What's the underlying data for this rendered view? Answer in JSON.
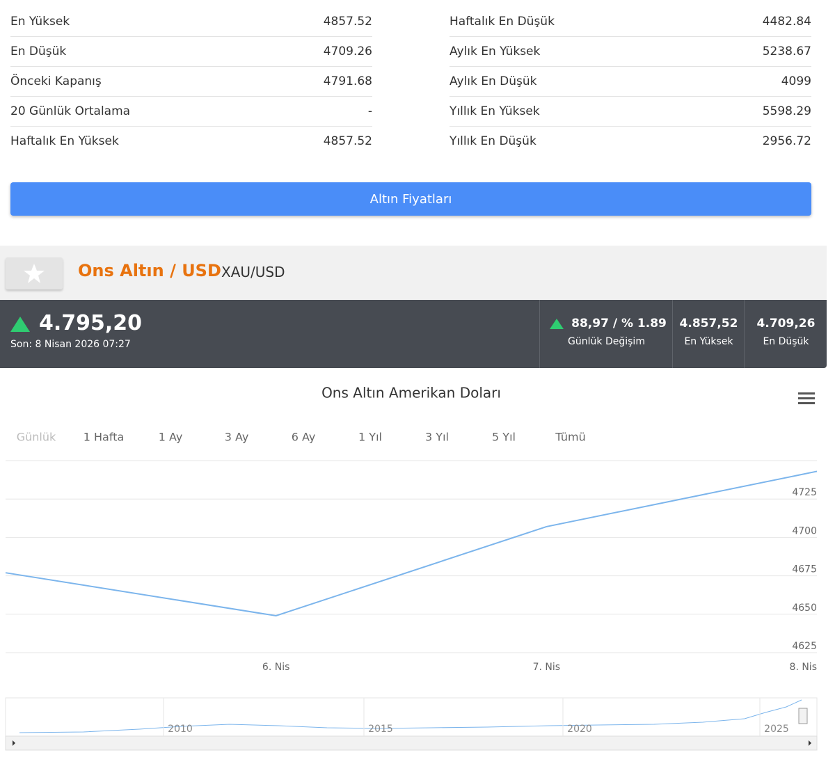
{
  "stats": {
    "left": [
      {
        "label": "En Yüksek",
        "value": 4857.52
      },
      {
        "label": "En Düşük",
        "value": 4709.26
      },
      {
        "label": "Önceki Kapanış",
        "value": 4791.68
      },
      {
        "label": "20 Günlük Ortalama",
        "value": "-"
      },
      {
        "label": "Haftalık En Yüksek",
        "value": 4857.52
      }
    ],
    "right": [
      {
        "label": "Haftalık En Düşük",
        "value": 4482.84
      },
      {
        "label": "Aylık En Yüksek",
        "value": 5238.67
      },
      {
        "label": "Aylık En Düşük",
        "value": 4099
      },
      {
        "label": "Yıllık En Yüksek",
        "value": 5598.29
      },
      {
        "label": "Yıllık En Düşük",
        "value": 2956.72
      }
    ]
  },
  "button": "Altın Fiyatları",
  "header": {
    "name": "Ons Altın / USD",
    "symbol": "XAU/USD"
  },
  "quote": {
    "price": "4.795,20",
    "last_update": "Son: 8 Nisan 2026 07:27",
    "change": "88,97 / % 1.89",
    "change_label": "Günlük Değişim",
    "high": "4.857,52",
    "high_label": "En Yüksek",
    "low": "4.709,26",
    "low_label": "En Düşük"
  },
  "range_buttons": [
    "Günlük",
    "1 Hafta",
    "1 Ay",
    "3 Ay",
    "6 Ay",
    "1 Yıl",
    "3 Yıl",
    "5 Yıl",
    "Tümü"
  ],
  "chart_data": {
    "type": "line",
    "title": "Ons Altın Amerikan Doları",
    "categories": [
      null,
      "6. Nis",
      "7. Nis",
      "8. Nis"
    ],
    "values": [
      4677,
      4649,
      4707,
      4743
    ],
    "color": "#7cb5ec",
    "ylim": [
      4625,
      4750
    ],
    "yticks": [
      4625,
      4650,
      4675,
      4700,
      4725
    ],
    "grid": true
  },
  "navigator": {
    "labels": [
      "2010",
      "2015",
      "2020",
      "2025"
    ]
  }
}
